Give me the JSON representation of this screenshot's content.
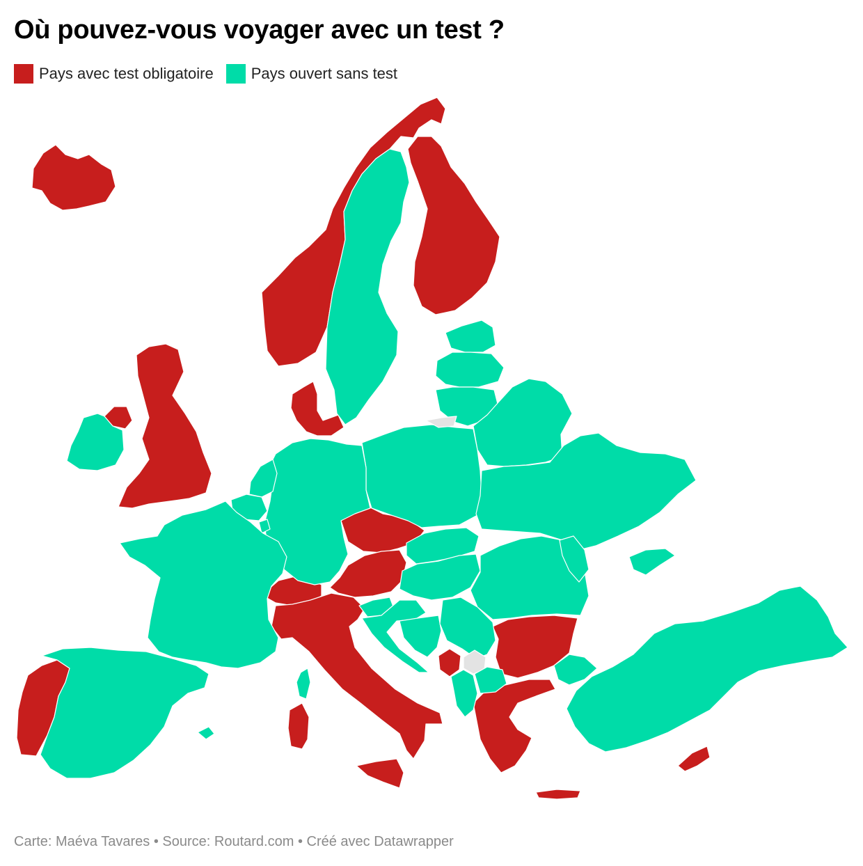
{
  "title": "Où pouvez-vous voyager avec un test ?",
  "legend": [
    {
      "label": "Pays avec test obligatoire",
      "color": "#c71e1d"
    },
    {
      "label": "Pays ouvert sans test",
      "color": "#00dca8"
    }
  ],
  "colors": {
    "test": "#c71e1d",
    "open": "#00dca8",
    "nodata": "#e3e3e3"
  },
  "footer": {
    "author": "Carte: Maéva Tavares",
    "source": "Source: Routard.com",
    "credit": "Créé avec Datawrapper",
    "separator": " • "
  },
  "map_data": {
    "test_required": [
      "Islande",
      "Norvège",
      "Finlande",
      "Danemark",
      "Royaume-Uni",
      "Irlande du Nord",
      "Tchéquie",
      "Autriche",
      "Suisse",
      "Italie",
      "Portugal",
      "Bulgarie",
      "Grèce",
      "Monténégro",
      "Chypre",
      "Malte",
      "Sicile",
      "Sardaigne"
    ],
    "open_without_test": [
      "Irlande",
      "Suède",
      "Estonie",
      "Lettonie",
      "Lituanie",
      "Biélorussie",
      "Pologne",
      "Allemagne",
      "Pays-Bas",
      "Belgique",
      "Luxembourg",
      "France",
      "Espagne",
      "Ukraine",
      "Slovaquie",
      "Hongrie",
      "Roumanie",
      "Moldavie",
      "Slovénie",
      "Croatie",
      "Bosnie-Herzégovine",
      "Serbie",
      "Albanie",
      "Macédoine du Nord",
      "Turquie",
      "Corse",
      "Baléares"
    ],
    "no_data": [
      "Kosovo",
      "Kaliningrad"
    ]
  }
}
